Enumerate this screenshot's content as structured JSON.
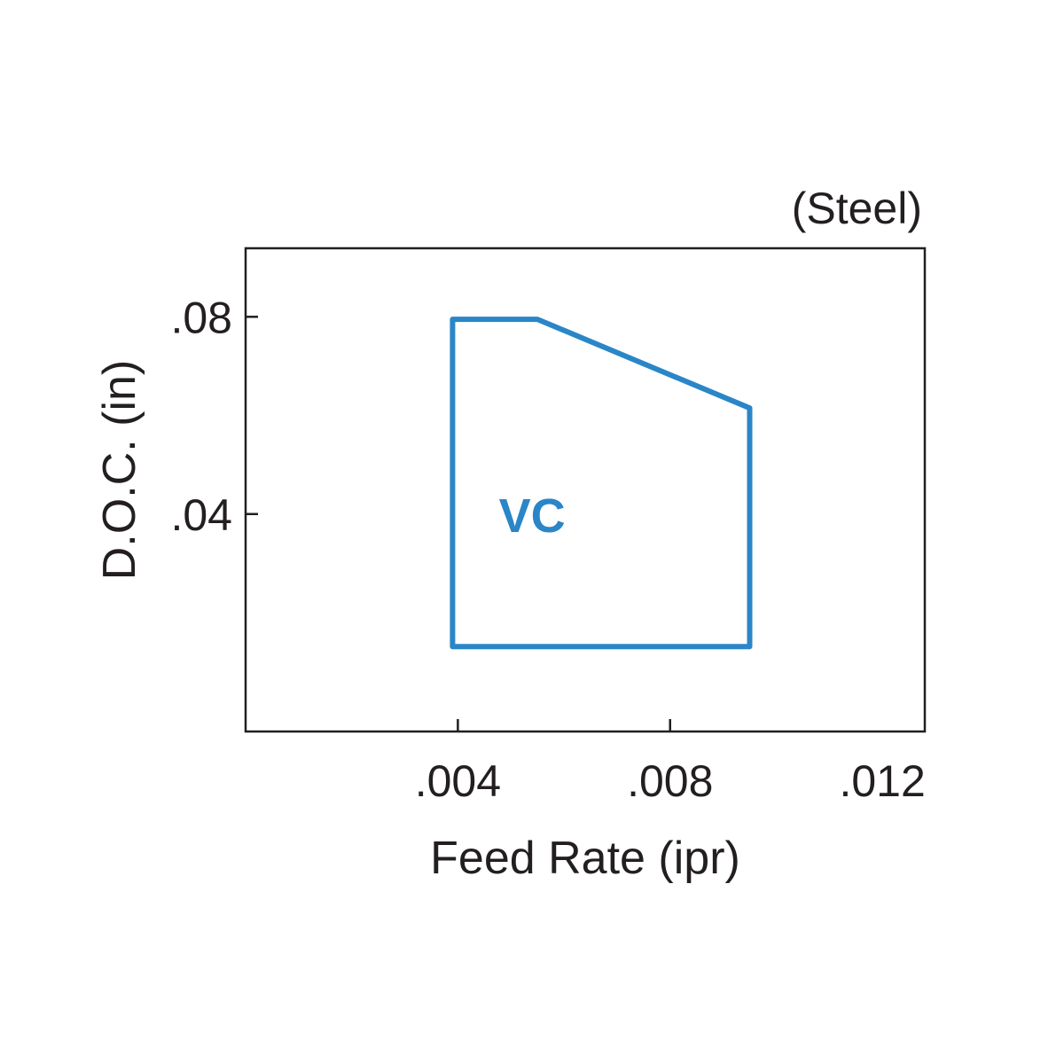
{
  "chart_data": {
    "type": "area",
    "subtitle": "(Steel)",
    "xlabel": "Feed Rate (ipr)",
    "ylabel": "D.O.C. (in)",
    "xlim": [
      0.0,
      0.0128
    ],
    "ylim": [
      -0.0041,
      0.0939
    ],
    "x_ticks": [
      {
        "value": 0.004,
        "label": ".004"
      },
      {
        "value": 0.008,
        "label": ".008"
      },
      {
        "value": 0.012,
        "label": ".012"
      }
    ],
    "y_ticks": [
      {
        "value": 0.04,
        "label": ".04"
      },
      {
        "value": 0.08,
        "label": ".08"
      }
    ],
    "grid": false,
    "regions": [
      {
        "name": "VC",
        "color": "#2a86c7",
        "label_at": [
          0.0054,
          0.04
        ],
        "points": [
          [
            0.0039,
            0.0131
          ],
          [
            0.0039,
            0.0795
          ],
          [
            0.0055,
            0.0795
          ],
          [
            0.0095,
            0.0615
          ],
          [
            0.0095,
            0.0131
          ]
        ]
      }
    ]
  }
}
